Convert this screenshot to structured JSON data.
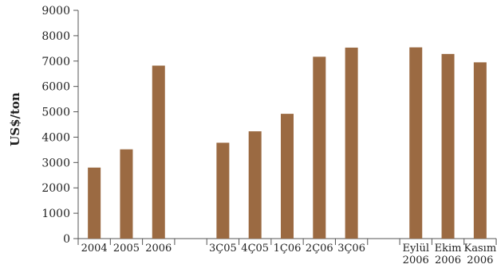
{
  "chart_data": {
    "type": "bar",
    "ylabel": "US$/ton",
    "xlabel": "",
    "title": "",
    "ylim": [
      0,
      9000
    ],
    "yticks": [
      0,
      1000,
      2000,
      3000,
      4000,
      5000,
      6000,
      7000,
      8000,
      9000
    ],
    "bar_color": "#9b6a42",
    "grid": false,
    "legend": "none",
    "categories": [
      {
        "label": [
          "2004"
        ],
        "value": 2800
      },
      {
        "label": [
          "2005"
        ],
        "value": 3520
      },
      {
        "label": [
          "2006"
        ],
        "value": 6820
      },
      {
        "label": [
          ""
        ],
        "value": null
      },
      {
        "label": [
          "3Ç05"
        ],
        "value": 3780
      },
      {
        "label": [
          "4Ç05"
        ],
        "value": 4230
      },
      {
        "label": [
          "1Ç06"
        ],
        "value": 4920
      },
      {
        "label": [
          "2Ç06"
        ],
        "value": 7170
      },
      {
        "label": [
          "3Ç06"
        ],
        "value": 7530
      },
      {
        "label": [
          ""
        ],
        "value": null
      },
      {
        "label": [
          "Eylül",
          "2006"
        ],
        "value": 7540
      },
      {
        "label": [
          "Ekim",
          "2006"
        ],
        "value": 7280
      },
      {
        "label": [
          "Kasım",
          "2006"
        ],
        "value": 6950
      }
    ]
  }
}
